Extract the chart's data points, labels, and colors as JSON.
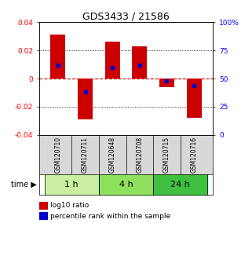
{
  "title": "GDS3433 / 21586",
  "samples": [
    "GSM120710",
    "GSM120711",
    "GSM120648",
    "GSM120708",
    "GSM120715",
    "GSM120716"
  ],
  "groups": [
    {
      "label": "1 h",
      "indices": [
        0,
        1
      ],
      "color": "#c8f0a0"
    },
    {
      "label": "4 h",
      "indices": [
        2,
        3
      ],
      "color": "#90e060"
    },
    {
      "label": "24 h",
      "indices": [
        4,
        5
      ],
      "color": "#40c040"
    }
  ],
  "log10_ratio": [
    0.031,
    -0.029,
    0.026,
    0.023,
    -0.006,
    -0.028
  ],
  "percentile_rank": [
    0.62,
    0.38,
    0.6,
    0.62,
    0.48,
    0.44
  ],
  "ylim_left": [
    -0.04,
    0.04
  ],
  "ylim_right": [
    0,
    100
  ],
  "yticks_left": [
    -0.04,
    -0.02,
    0,
    0.02,
    0.04
  ],
  "yticks_right": [
    0,
    25,
    50,
    75,
    100
  ],
  "bar_color": "#cc0000",
  "dot_color": "#0000cc",
  "zero_line_color": "#cc0000",
  "grid_color": "#000000",
  "title_fontsize": 9,
  "tick_fontsize": 6.5,
  "label_fontsize": 6.5,
  "sample_label_fontsize": 5.5,
  "group_label_fontsize": 8,
  "bar_width": 0.55
}
